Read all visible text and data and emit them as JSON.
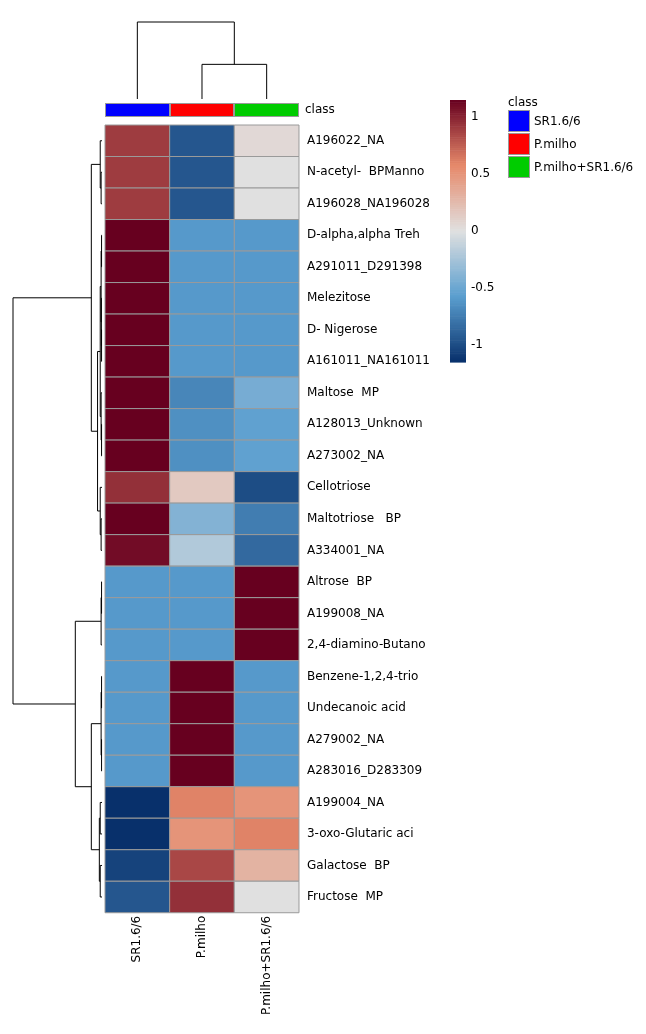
{
  "chart_data": {
    "type": "heatmap",
    "categories": [
      "SR1.6/6",
      "P.milho",
      "P.milho+SR1.6/6"
    ],
    "colors": [
      "#0000ff",
      "#ff0000",
      "#00cc00"
    ],
    "y_categories": [
      "A196022_NA",
      "N-acetyl-  BPManno",
      "A196028_NA196028",
      "D-alpha,alpha Treh",
      "A291011_D291398",
      "Melezitose",
      "D- Nigerose",
      "A161011_NA161011",
      "Maltose  MP",
      "A128013_Unknown",
      "A273002_NA",
      "Cellotriose",
      "Maltotriose   BP",
      "A334001_NA",
      "Altrose  BP",
      "A199008_NA",
      "2,4-diamino-Butano",
      "Benzene-1,2,4-trio",
      "Undecanoic acid",
      "A279002_NA",
      "A283016_D283309",
      "A199004_NA",
      "3-oxo-Glutaric aci",
      "Galactose  BP",
      "Fructose  MP"
    ],
    "cells": [
      [
        0.9,
        -0.95,
        0.05
      ],
      [
        0.9,
        -0.95,
        0
      ],
      [
        0.9,
        -0.95,
        0
      ],
      [
        1.15,
        -0.6,
        -0.6
      ],
      [
        1.15,
        -0.6,
        -0.6
      ],
      [
        1.15,
        -0.6,
        -0.6
      ],
      [
        1.15,
        -0.6,
        -0.6
      ],
      [
        1.15,
        -0.6,
        -0.6
      ],
      [
        1.15,
        -0.7,
        -0.45
      ],
      [
        1.15,
        -0.65,
        -0.55
      ],
      [
        1.15,
        -0.65,
        -0.55
      ],
      [
        0.95,
        0.15,
        -1.0
      ],
      [
        1.15,
        -0.4,
        -0.75
      ],
      [
        1.1,
        -0.2,
        -0.85
      ],
      [
        -0.6,
        -0.6,
        1.15
      ],
      [
        -0.6,
        -0.6,
        1.15
      ],
      [
        -0.6,
        -0.6,
        1.15
      ],
      [
        -0.6,
        1.15,
        -0.6
      ],
      [
        -0.6,
        1.15,
        -0.6
      ],
      [
        -0.6,
        1.15,
        -0.6
      ],
      [
        -0.6,
        1.15,
        -0.6
      ],
      [
        -1.15,
        0.6,
        0.5
      ],
      [
        -1.15,
        0.5,
        0.6
      ],
      [
        -1.05,
        0.85,
        0.3
      ],
      [
        -0.95,
        0.95,
        0
      ]
    ],
    "clim": [
      -1.15,
      1.15
    ],
    "cticks": [
      -1,
      -0.5,
      0,
      0.5,
      1
    ],
    "legend_title": "class",
    "annotations": [
      "class"
    ]
  }
}
